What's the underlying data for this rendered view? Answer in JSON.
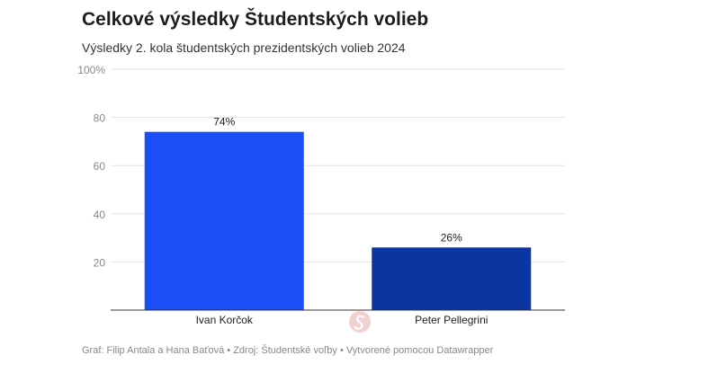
{
  "title": "Celkové výsledky Študentských volieb",
  "subtitle": "Výsledky 2. kola študentských prezidentských volieb 2024",
  "footer": {
    "credit": "Graf: Filip Antala a Hana Baťová",
    "source": "Zdroj: Študentské voľby",
    "tool": "Vytvorené pomocou Datawrapper",
    "separator": " • "
  },
  "colors": {
    "bar_1": "#1b4ef5",
    "bar_2": "#0b36a1",
    "gridline": "#e3e3e3",
    "axis": "#333333",
    "tick_text": "#888888"
  },
  "chart_data": {
    "type": "bar",
    "categories": [
      "Ivan Korčok",
      "Peter Pellegrini"
    ],
    "values": [
      74,
      26
    ],
    "value_labels": [
      "74%",
      "26%"
    ],
    "title": "Celkové výsledky Študentských volieb",
    "subtitle": "Výsledky 2. kola študentských prezidentských volieb 2024",
    "xlabel": "",
    "ylabel": "",
    "ylim": [
      0,
      100
    ],
    "yticks": [
      20,
      40,
      60,
      80,
      100
    ],
    "ytick_labels": [
      "20",
      "40",
      "60",
      "80",
      "100%"
    ],
    "grid": true,
    "legend": "none"
  }
}
